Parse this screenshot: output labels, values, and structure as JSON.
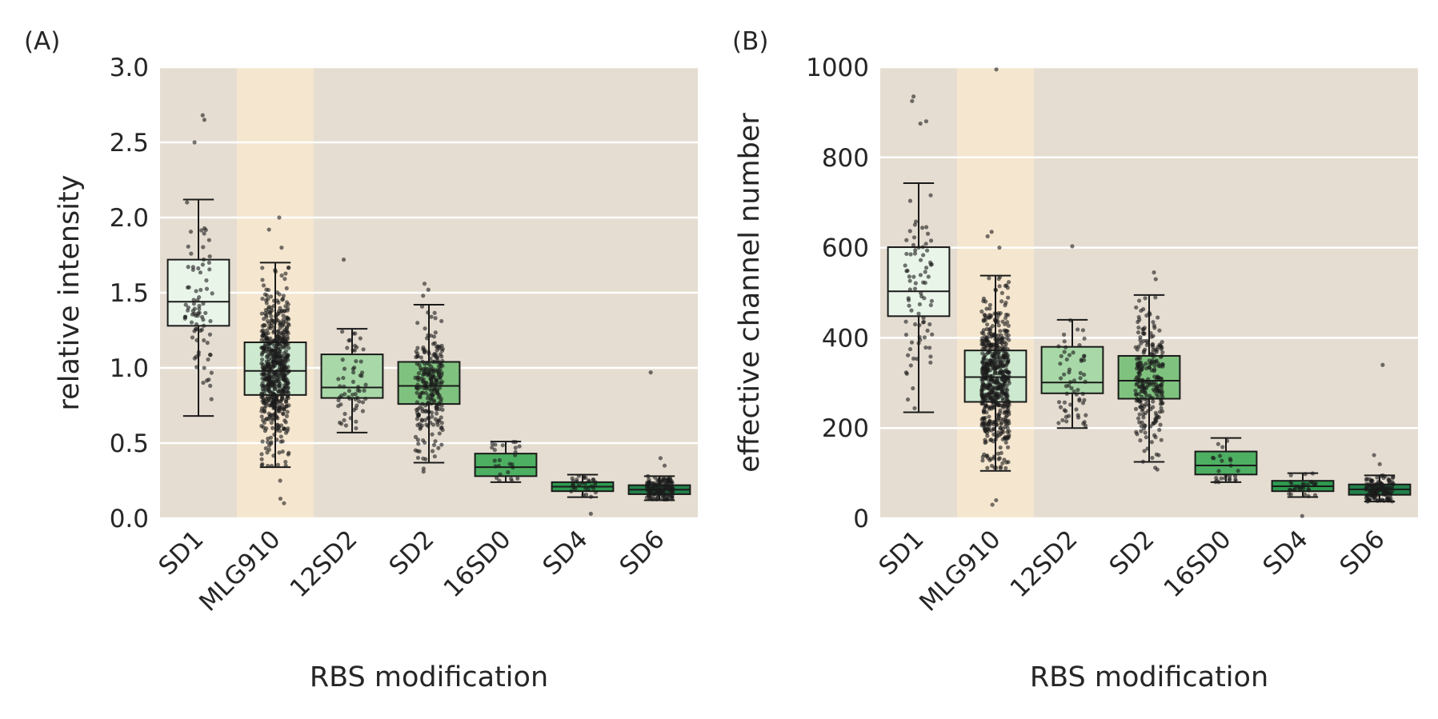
{
  "colors": {
    "plot_background": "#e5ddd1",
    "highlight_band": "#f5e6cf",
    "gridline": "#ffffff",
    "box_edge": "#1a1a1a",
    "points": "#1a1a1a",
    "box_fills": [
      "#eaf5ea",
      "#cde9cf",
      "#a8d8a8",
      "#7fc27f",
      "#4daf62",
      "#2e9a50",
      "#23804a"
    ]
  },
  "chart_data": [
    {
      "type": "box",
      "panel_label": "(A)",
      "xlabel": "RBS modification",
      "ylabel": "relative intensity",
      "ylim": [
        0,
        3.0
      ],
      "yticks": [
        "0.0",
        "0.5",
        "1.0",
        "1.5",
        "2.0",
        "2.5",
        "3.0"
      ],
      "ytick_values": [
        0,
        0.5,
        1.0,
        1.5,
        2.0,
        2.5,
        3.0
      ],
      "grid": "horizontal",
      "highlight_category": "MLG910",
      "categories": [
        "SD1",
        "MLG910",
        "12SD2",
        "SD2",
        "16SD0",
        "SD4",
        "SD6"
      ],
      "boxes": [
        {
          "whisker_low": 0.68,
          "q1": 1.28,
          "median": 1.44,
          "q3": 1.72,
          "whisker_high": 2.12,
          "n_points": 80,
          "outliers": [
            2.5,
            2.65,
            2.68
          ]
        },
        {
          "whisker_low": 0.34,
          "q1": 0.82,
          "median": 0.98,
          "q3": 1.17,
          "whisker_high": 1.7,
          "n_points": 600,
          "outliers": [
            0.1,
            0.13,
            0.25,
            1.8,
            1.92,
            2.0
          ]
        },
        {
          "whisker_low": 0.57,
          "q1": 0.8,
          "median": 0.87,
          "q3": 1.09,
          "whisker_high": 1.26,
          "n_points": 60,
          "outliers": [
            1.72
          ]
        },
        {
          "whisker_low": 0.37,
          "q1": 0.76,
          "median": 0.88,
          "q3": 1.04,
          "whisker_high": 1.42,
          "n_points": 250,
          "outliers": [
            0.31,
            0.33,
            1.48,
            1.52,
            1.56
          ]
        },
        {
          "whisker_low": 0.24,
          "q1": 0.28,
          "median": 0.34,
          "q3": 0.43,
          "whisker_high": 0.51,
          "n_points": 25,
          "outliers": []
        },
        {
          "whisker_low": 0.14,
          "q1": 0.18,
          "median": 0.21,
          "q3": 0.24,
          "whisker_high": 0.29,
          "n_points": 30,
          "outliers": [
            0.03
          ]
        },
        {
          "whisker_low": 0.12,
          "q1": 0.16,
          "median": 0.19,
          "q3": 0.22,
          "whisker_high": 0.28,
          "n_points": 140,
          "outliers": [
            0.35,
            0.4,
            0.97
          ]
        }
      ]
    },
    {
      "type": "box",
      "panel_label": "(B)",
      "xlabel": "RBS modification",
      "ylabel": "effective channel number",
      "ylim": [
        0,
        1000
      ],
      "yticks": [
        "0",
        "200",
        "400",
        "600",
        "800",
        "1000"
      ],
      "ytick_values": [
        0,
        200,
        400,
        600,
        800,
        1000
      ],
      "grid": "horizontal",
      "highlight_category": "MLG910",
      "categories": [
        "SD1",
        "MLG910",
        "12SD2",
        "SD2",
        "16SD0",
        "SD4",
        "SD6"
      ],
      "boxes": [
        {
          "whisker_low": 235,
          "q1": 448,
          "median": 503,
          "q3": 601,
          "whisker_high": 743,
          "n_points": 80,
          "outliers": [
            875,
            880,
            925,
            935
          ]
        },
        {
          "whisker_low": 105,
          "q1": 258,
          "median": 313,
          "q3": 372,
          "whisker_high": 538,
          "n_points": 600,
          "outliers": [
            30,
            40,
            600,
            625,
            635,
            995
          ]
        },
        {
          "whisker_low": 200,
          "q1": 277,
          "median": 301,
          "q3": 380,
          "whisker_high": 440,
          "n_points": 60,
          "outliers": [
            603
          ]
        },
        {
          "whisker_low": 125,
          "q1": 265,
          "median": 305,
          "q3": 360,
          "whisker_high": 495,
          "n_points": 250,
          "outliers": [
            108,
            112,
            530,
            545
          ]
        },
        {
          "whisker_low": 80,
          "q1": 97,
          "median": 117,
          "q3": 148,
          "whisker_high": 178,
          "n_points": 25,
          "outliers": []
        },
        {
          "whisker_low": 47,
          "q1": 60,
          "median": 71,
          "q3": 83,
          "whisker_high": 100,
          "n_points": 30,
          "outliers": [
            5
          ]
        },
        {
          "whisker_low": 37,
          "q1": 52,
          "median": 64,
          "q3": 75,
          "whisker_high": 95,
          "n_points": 140,
          "outliers": [
            120,
            140,
            340
          ]
        }
      ]
    }
  ]
}
